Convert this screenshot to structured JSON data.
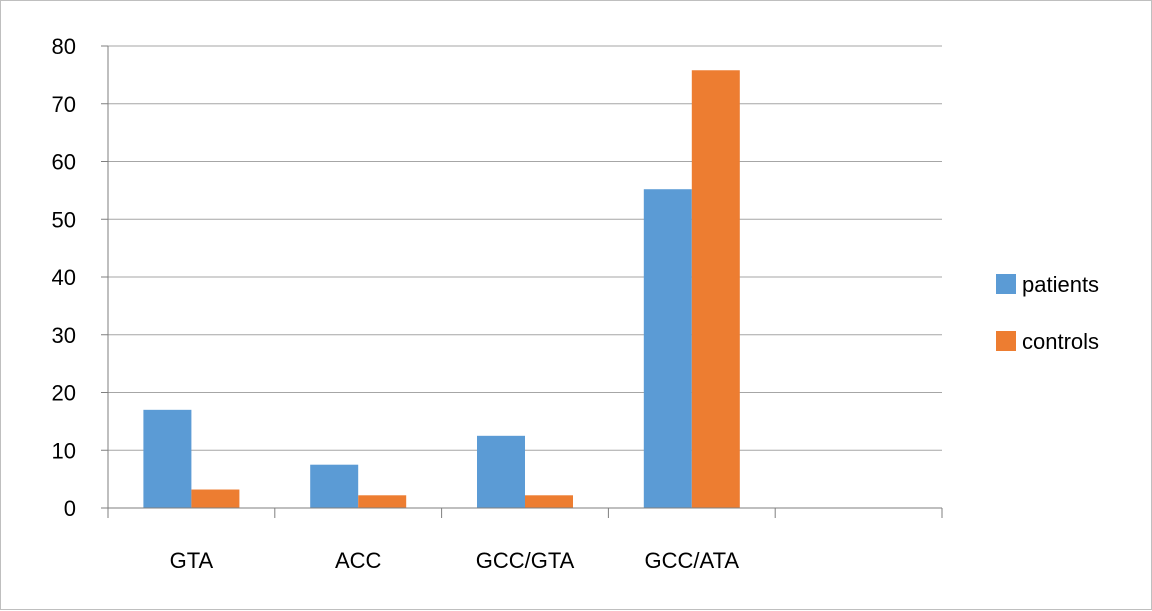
{
  "chart_data": {
    "type": "bar",
    "categories": [
      "GTA",
      "ACC",
      "GCC/GTA",
      "GCC/ATA",
      ""
    ],
    "series": [
      {
        "name": "patients",
        "color": "#5B9BD5",
        "values": [
          17,
          7.5,
          12.5,
          55.2,
          null
        ]
      },
      {
        "name": "controls",
        "color": "#ED7D31",
        "values": [
          3.2,
          2.2,
          2.2,
          75.8,
          null
        ]
      }
    ],
    "title": "",
    "xlabel": "",
    "ylabel": "",
    "ylim": [
      0,
      80
    ],
    "yticks": [
      0,
      10,
      20,
      30,
      40,
      50,
      60,
      70,
      80
    ],
    "grid": true,
    "legend_position": "right"
  }
}
